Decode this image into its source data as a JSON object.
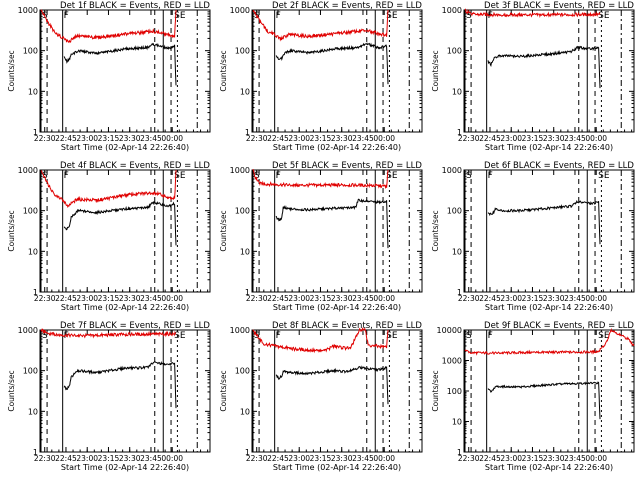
{
  "colors": {
    "background": "#ffffff",
    "axes": "#000000",
    "events": "#000000",
    "lld": "#e00000"
  },
  "chart_data": [
    {
      "type": "line",
      "title": "Det 1f BLACK = Events, RED = LLD",
      "xlabel": "Start Time (02-Apr-14 22:26:40)",
      "ylabel": "Counts/sec",
      "xticks": [
        "22:30",
        "22:45",
        "23:00",
        "23:15",
        "23:30",
        "23:45",
        "00:00"
      ],
      "yticks": [
        "1",
        "10",
        "100",
        "1000"
      ],
      "ylim": [
        1,
        1000
      ],
      "yscale": "log",
      "markers": [
        "S",
        "F",
        "SE"
      ],
      "series": [
        {
          "name": "LLD",
          "color": "red",
          "values": [
            [
              0.7,
              1000
            ],
            [
              6,
              480
            ],
            [
              11,
              260
            ],
            [
              16,
              210
            ],
            [
              20,
              160
            ],
            [
              26,
              230
            ],
            [
              40,
              210
            ],
            [
              60,
              255
            ],
            [
              80,
              300
            ],
            [
              90,
              250
            ],
            [
              95,
              230
            ],
            [
              96,
              1000
            ]
          ]
        },
        {
          "name": "Events",
          "color": "black",
          "values": [
            [
              17,
              70
            ],
            [
              19,
              55
            ],
            [
              21,
              62
            ],
            [
              22,
              78
            ],
            [
              27,
              100
            ],
            [
              40,
              85
            ],
            [
              60,
              110
            ],
            [
              76,
              120
            ],
            [
              80,
              145
            ],
            [
              90,
              115
            ],
            [
              95,
              130
            ],
            [
              96,
              14
            ]
          ]
        }
      ]
    },
    {
      "type": "line",
      "title": "Det 2f BLACK = Events, RED = LLD",
      "xlabel": "Start Time (02-Apr-14 22:26:40)",
      "ylabel": "Counts/sec",
      "xticks": [
        "22:30",
        "22:45",
        "23:00",
        "23:15",
        "23:30",
        "23:45",
        "00:00"
      ],
      "yticks": [
        "1",
        "10",
        "100",
        "1000"
      ],
      "ylim": [
        1,
        1000
      ],
      "yscale": "log",
      "markers": [
        "S",
        "F",
        "SE"
      ],
      "series": [
        {
          "name": "LLD",
          "color": "red",
          "values": [
            [
              0.7,
              1000
            ],
            [
              6,
              500
            ],
            [
              11,
              300
            ],
            [
              16,
              250
            ],
            [
              20,
              190
            ],
            [
              26,
              250
            ],
            [
              40,
              225
            ],
            [
              60,
              265
            ],
            [
              80,
              315
            ],
            [
              90,
              260
            ],
            [
              95,
              240
            ],
            [
              96,
              1000
            ]
          ]
        },
        {
          "name": "Events",
          "color": "black",
          "values": [
            [
              17,
              75
            ],
            [
              19,
              60
            ],
            [
              21,
              65
            ],
            [
              22,
              82
            ],
            [
              27,
              100
            ],
            [
              40,
              88
            ],
            [
              60,
              112
            ],
            [
              76,
              120
            ],
            [
              80,
              150
            ],
            [
              90,
              118
            ],
            [
              95,
              132
            ],
            [
              96,
              15
            ]
          ]
        }
      ]
    },
    {
      "type": "line",
      "title": "Det 3f BLACK = Events, RED = LLD",
      "xlabel": "Start Time (02-Apr-14 22:26:40)",
      "ylabel": "Counts/sec",
      "xticks": [
        "22:30",
        "22:45",
        "23:00",
        "23:15",
        "23:30",
        "23:45",
        "00:00"
      ],
      "yticks": [
        "1",
        "10",
        "100",
        "1000"
      ],
      "ylim": [
        1,
        1000
      ],
      "yscale": "log",
      "markers": [
        "S",
        "F",
        "SE"
      ],
      "series": [
        {
          "name": "LLD",
          "color": "red",
          "values": [
            [
              0.7,
              1000
            ],
            [
              2,
              900
            ],
            [
              6,
              780
            ],
            [
              30,
              760
            ],
            [
              60,
              760
            ],
            [
              96,
              780
            ]
          ]
        },
        {
          "name": "Events",
          "color": "black",
          "values": [
            [
              17,
              55
            ],
            [
              19,
              45
            ],
            [
              21,
              60
            ],
            [
              22,
              70
            ],
            [
              27,
              75
            ],
            [
              40,
              72
            ],
            [
              60,
              82
            ],
            [
              76,
              95
            ],
            [
              80,
              120
            ],
            [
              90,
              110
            ],
            [
              95,
              125
            ],
            [
              96,
              12
            ]
          ]
        }
      ]
    },
    {
      "type": "line",
      "title": "Det 4f BLACK = Events, RED = LLD",
      "xlabel": "Start Time (02-Apr-14 22:26:40)",
      "ylabel": "Counts/sec",
      "xticks": [
        "22:30",
        "22:45",
        "23:00",
        "23:15",
        "23:30",
        "23:45",
        "00:00"
      ],
      "yticks": [
        "1",
        "10",
        "100",
        "1000"
      ],
      "ylim": [
        1,
        1000
      ],
      "yscale": "log",
      "markers": [
        "S",
        "F",
        "SE"
      ],
      "series": [
        {
          "name": "LLD",
          "color": "red",
          "values": [
            [
              0.7,
              1000
            ],
            [
              6,
              420
            ],
            [
              11,
              240
            ],
            [
              16,
              180
            ],
            [
              20,
              130
            ],
            [
              26,
              190
            ],
            [
              40,
              180
            ],
            [
              60,
              240
            ],
            [
              80,
              280
            ],
            [
              90,
              220
            ],
            [
              95,
              200
            ],
            [
              96,
              1000
            ]
          ]
        },
        {
          "name": "Events",
          "color": "black",
          "values": [
            [
              17,
              40
            ],
            [
              19,
              35
            ],
            [
              21,
              45
            ],
            [
              22,
              70
            ],
            [
              27,
              100
            ],
            [
              40,
              90
            ],
            [
              60,
              110
            ],
            [
              76,
              120
            ],
            [
              80,
              160
            ],
            [
              90,
              130
            ],
            [
              95,
              150
            ],
            [
              96,
              14
            ]
          ]
        }
      ]
    },
    {
      "type": "line",
      "title": "Det 5f BLACK = Events, RED = LLD",
      "xlabel": "Start Time (02-Apr-14 22:26:40)",
      "ylabel": "Counts/sec",
      "xticks": [
        "22:30",
        "22:45",
        "23:00",
        "23:15",
        "23:30",
        "23:45",
        "00:00"
      ],
      "yticks": [
        "1",
        "10",
        "100",
        "1000"
      ],
      "ylim": [
        1,
        1000
      ],
      "yscale": "log",
      "markers": [
        "S",
        "F",
        "SE"
      ],
      "series": [
        {
          "name": "LLD",
          "color": "red",
          "values": [
            [
              0.7,
              1000
            ],
            [
              2,
              700
            ],
            [
              6,
              460
            ],
            [
              30,
              420
            ],
            [
              60,
              430
            ],
            [
              80,
              420
            ],
            [
              95,
              400
            ],
            [
              96,
              1000
            ]
          ]
        },
        {
          "name": "Events",
          "color": "black",
          "values": [
            [
              17,
              70
            ],
            [
              19,
              60
            ],
            [
              21,
              65
            ],
            [
              22,
              120
            ],
            [
              27,
              110
            ],
            [
              40,
              105
            ],
            [
              60,
              115
            ],
            [
              73,
              120
            ],
            [
              75,
              180
            ],
            [
              90,
              160
            ],
            [
              95,
              170
            ],
            [
              96,
              12
            ]
          ]
        }
      ]
    },
    {
      "type": "line",
      "title": "Det 6f BLACK = Events, RED = LLD",
      "xlabel": "Start Time (02-Apr-14 22:26:40)",
      "ylabel": "Counts/sec",
      "xticks": [
        "22:30",
        "22:45",
        "23:00",
        "23:15",
        "23:30",
        "23:45",
        "00:00"
      ],
      "yticks": [
        "1",
        "10",
        "100",
        "1000"
      ],
      "ylim": [
        1,
        1000
      ],
      "yscale": "log",
      "markers": [
        "S",
        "F",
        "SE"
      ],
      "series": [
        {
          "name": "LLD",
          "color": "red",
          "values": []
        },
        {
          "name": "Events",
          "color": "black",
          "values": [
            [
              17,
              90
            ],
            [
              19,
              80
            ],
            [
              21,
              90
            ],
            [
              22,
              110
            ],
            [
              27,
              100
            ],
            [
              40,
              100
            ],
            [
              60,
              115
            ],
            [
              76,
              130
            ],
            [
              80,
              165
            ],
            [
              90,
              150
            ],
            [
              95,
              160
            ],
            [
              96,
              15
            ]
          ]
        }
      ]
    },
    {
      "type": "line",
      "title": "Det 7f BLACK = Events, RED = LLD",
      "xlabel": "Start Time (02-Apr-14 22:26:40)",
      "ylabel": "Counts/sec",
      "xticks": [
        "22:30",
        "22:45",
        "23:00",
        "23:15",
        "23:30",
        "23:45",
        "00:00"
      ],
      "yticks": [
        "1",
        "10",
        "100",
        "1000"
      ],
      "ylim": [
        1,
        1000
      ],
      "yscale": "log",
      "markers": [
        "S",
        "F",
        "SE"
      ],
      "series": [
        {
          "name": "LLD",
          "color": "red",
          "values": [
            [
              0.7,
              1000
            ],
            [
              6,
              820
            ],
            [
              12,
              760
            ],
            [
              30,
              720
            ],
            [
              60,
              780
            ],
            [
              96,
              800
            ]
          ]
        },
        {
          "name": "Events",
          "color": "black",
          "values": [
            [
              17,
              40
            ],
            [
              19,
              35
            ],
            [
              21,
              45
            ],
            [
              22,
              70
            ],
            [
              27,
              100
            ],
            [
              40,
              90
            ],
            [
              60,
              115
            ],
            [
              76,
              120
            ],
            [
              80,
              160
            ],
            [
              90,
              140
            ],
            [
              95,
              155
            ],
            [
              96,
              12
            ]
          ]
        }
      ]
    },
    {
      "type": "line",
      "title": "Det 8f BLACK = Events, RED = LLD",
      "xlabel": "Start Time (02-Apr-14 22:26:40)",
      "ylabel": "Counts/sec",
      "xticks": [
        "22:30",
        "22:45",
        "23:00",
        "23:15",
        "23:30",
        "23:45",
        "00:00"
      ],
      "yticks": [
        "1",
        "10",
        "100",
        "1000"
      ],
      "ylim": [
        1,
        1000
      ],
      "yscale": "log",
      "markers": [
        "S",
        "F",
        "SE"
      ],
      "series": [
        {
          "name": "LLD",
          "color": "red",
          "values": [
            [
              0.7,
              1000
            ],
            [
              4,
              700
            ],
            [
              8,
              460
            ],
            [
              15,
              410
            ],
            [
              30,
              340
            ],
            [
              50,
              300
            ],
            [
              58,
              400
            ],
            [
              66,
              360
            ],
            [
              70,
              390
            ],
            [
              76,
              1000
            ],
            [
              80,
              1000
            ],
            [
              82,
              420
            ],
            [
              95,
              380
            ],
            [
              96,
              1000
            ]
          ]
        },
        {
          "name": "Events",
          "color": "black",
          "values": [
            [
              17,
              80
            ],
            [
              19,
              65
            ],
            [
              21,
              75
            ],
            [
              22,
              95
            ],
            [
              27,
              90
            ],
            [
              40,
              85
            ],
            [
              58,
              100
            ],
            [
              66,
              95
            ],
            [
              76,
              120
            ],
            [
              82,
              110
            ],
            [
              90,
              105
            ],
            [
              95,
              120
            ],
            [
              96,
              15
            ]
          ]
        }
      ]
    },
    {
      "type": "line",
      "title": "Det 9f BLACK = Events, RED = LLD",
      "xlabel": "Start Time (02-Apr-14 22:26:40)",
      "ylabel": "Counts/sec",
      "xticks": [
        "22:30",
        "22:45",
        "23:00",
        "23:15",
        "23:30",
        "23:45",
        "00:00"
      ],
      "yticks": [
        "1",
        "10",
        "100",
        "1000",
        "10000"
      ],
      "ylim": [
        1,
        10000
      ],
      "yscale": "log",
      "markers": [
        "S",
        "F",
        "SE"
      ],
      "series": [
        {
          "name": "LLD",
          "color": "red",
          "values": [
            [
              0.7,
              2200
            ],
            [
              5,
              1800
            ],
            [
              20,
              1750
            ],
            [
              50,
              1850
            ],
            [
              90,
              1900
            ],
            [
              95,
              2000
            ],
            [
              100,
              3500
            ],
            [
              104,
              10000
            ],
            [
              110,
              7000
            ],
            [
              116,
              5000
            ],
            [
              120,
              3000
            ]
          ]
        },
        {
          "name": "Events",
          "color": "black",
          "values": [
            [
              17,
              120
            ],
            [
              19,
              95
            ],
            [
              21,
              115
            ],
            [
              22,
              140
            ],
            [
              27,
              140
            ],
            [
              40,
              135
            ],
            [
              60,
              160
            ],
            [
              75,
              175
            ],
            [
              90,
              180
            ],
            [
              95,
              185
            ],
            [
              96,
              12
            ]
          ]
        }
      ]
    }
  ]
}
